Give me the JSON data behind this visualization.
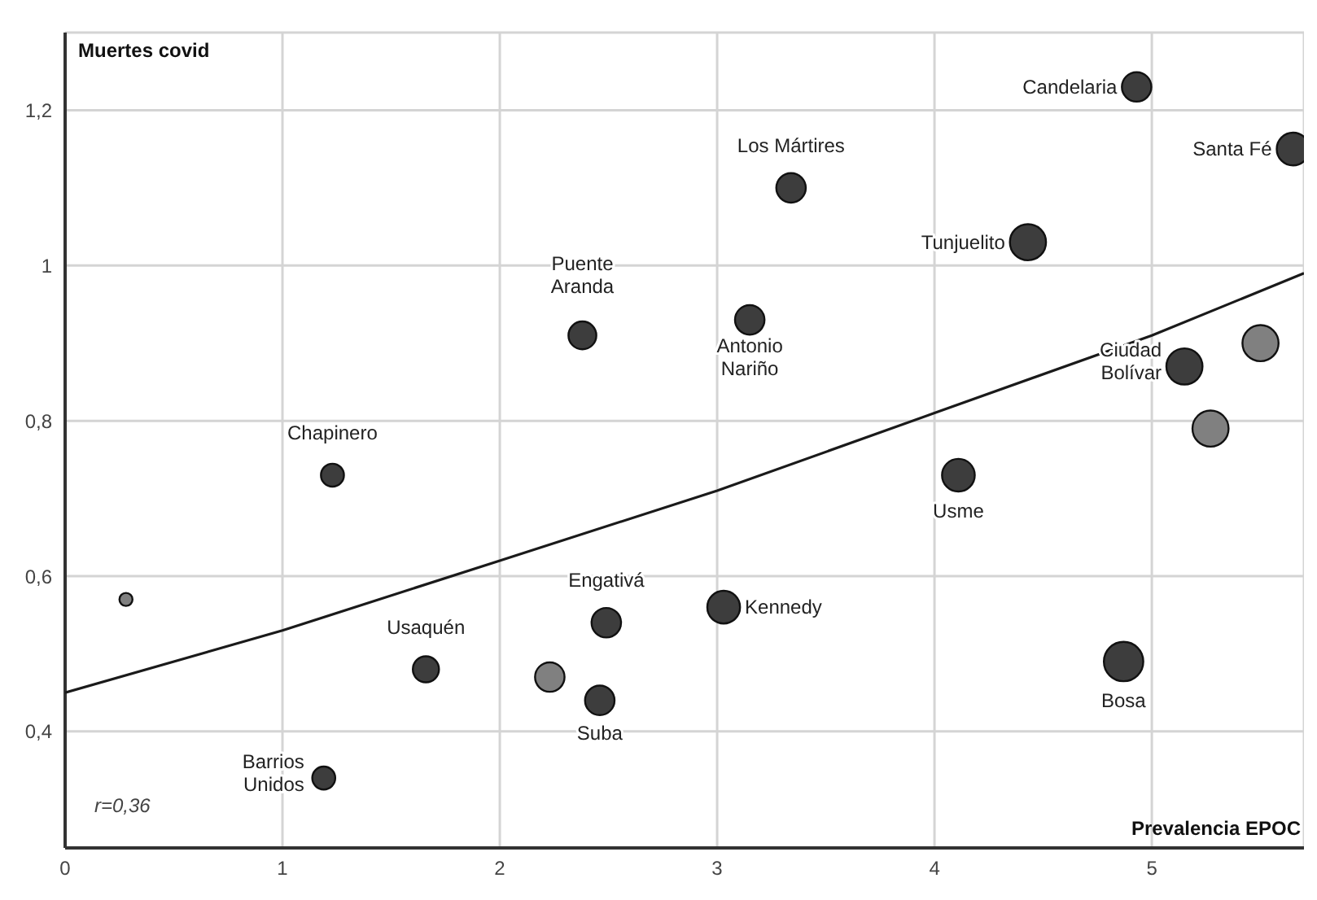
{
  "chart_data": {
    "type": "bubble",
    "xlabel": "Prevalencia EPOC",
    "ylabel": "Muertes covid",
    "xlim": [
      0,
      5.7
    ],
    "ylim": [
      0.25,
      1.3
    ],
    "xticks": [
      0,
      1,
      2,
      3,
      4,
      5
    ],
    "yticks": [
      {
        "value": 0.4,
        "label": "0,4"
      },
      {
        "value": 0.6,
        "label": "0,6"
      },
      {
        "value": 0.8,
        "label": "0,8"
      },
      {
        "value": 1,
        "label": "1"
      },
      {
        "value": 1.2,
        "label": "1,2"
      }
    ],
    "grid": true,
    "legend": false,
    "series": [
      {
        "color": "#3d3d3d",
        "x": [
          1.23,
          1.19,
          1.66,
          2.46,
          2.49,
          2.38,
          3.15,
          3.34,
          3.03,
          4.11,
          4.87,
          4.43,
          4.93,
          5.65,
          5.15
        ],
        "values": [
          0.73,
          0.34,
          0.48,
          0.44,
          0.54,
          0.91,
          0.93,
          1.1,
          0.56,
          0.73,
          0.49,
          1.03,
          1.23,
          1.15,
          0.87
        ],
        "sizes": [
          0.34,
          0.34,
          0.44,
          0.56,
          0.56,
          0.5,
          0.56,
          0.56,
          0.69,
          0.69,
          1,
          0.84,
          0.56,
          0.69,
          0.84
        ]
      },
      {
        "color": "#808080",
        "x": [
          0.28,
          2.23,
          5.5,
          5.27
        ],
        "values": [
          0.57,
          0.47,
          0.9,
          0.79
        ],
        "sizes": [
          0.11,
          0.56,
          0.84,
          0.84
        ]
      },
      {
        "type": "line",
        "color": "#1a1a1a",
        "x": [
          0,
          1,
          2,
          3,
          4,
          5,
          5.7
        ],
        "values": [
          0.45,
          0.53,
          0.62,
          0.71,
          0.81,
          0.91,
          0.99
        ]
      }
    ],
    "annotations": [
      {
        "text": "Chapinero",
        "x": 1.23,
        "y": 0.73
      },
      {
        "text": "Barrios Unidos",
        "x": 1.19,
        "y": 0.34
      },
      {
        "text": "Usaquén",
        "x": 1.66,
        "y": 0.48
      },
      {
        "text": "Suba",
        "x": 2.46,
        "y": 0.44
      },
      {
        "text": "Engativá",
        "x": 2.49,
        "y": 0.54
      },
      {
        "text": "Puente Aranda",
        "x": 2.38,
        "y": 0.91
      },
      {
        "text": "Antonio Nariño",
        "x": 3.15,
        "y": 0.93
      },
      {
        "text": "Los Mártires",
        "x": 3.34,
        "y": 1.1
      },
      {
        "text": "Kennedy",
        "x": 3.03,
        "y": 0.56
      },
      {
        "text": "Usme",
        "x": 4.11,
        "y": 0.73
      },
      {
        "text": "Bosa",
        "x": 4.87,
        "y": 0.49
      },
      {
        "text": "Tunjuelito",
        "x": 4.43,
        "y": 1.03
      },
      {
        "text": "Candelaria",
        "x": 4.93,
        "y": 1.23
      },
      {
        "text": "Santa Fé",
        "x": 5.65,
        "y": 1.15
      },
      {
        "text": "Ciudad Bolívar",
        "x": 5.15,
        "y": 0.87
      },
      "r=0,36"
    ]
  }
}
